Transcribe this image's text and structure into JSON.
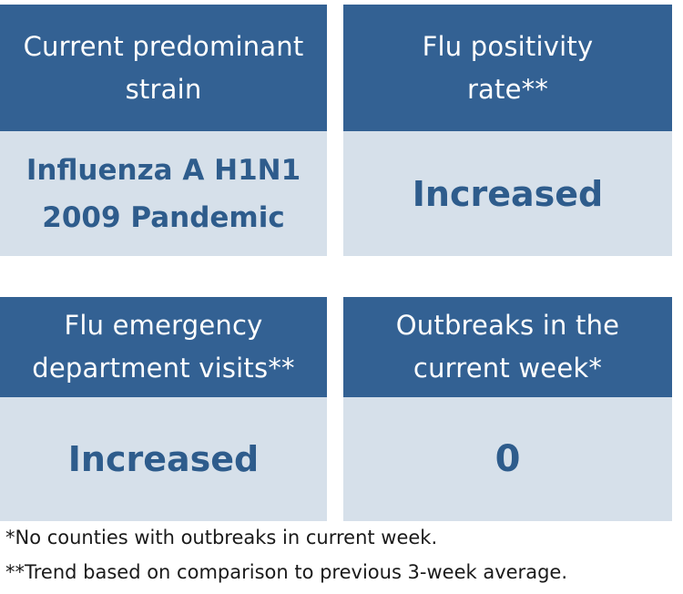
{
  "cards": [
    {
      "title": "Current predominant\nstrain",
      "value": "Influenza A H1N1\n2009 Pandemic"
    },
    {
      "title": "Flu positivity\nrate**",
      "value": "Increased"
    },
    {
      "title": "Flu emergency\ndepartment visits**",
      "value": "Increased"
    },
    {
      "title": "Outbreaks in the\ncurrent week*",
      "value": "0"
    }
  ],
  "footnotes": [
    "*No counties with outbreaks in current week.",
    "**Trend based on comparison to previous 3-week average."
  ],
  "colors": {
    "header_bg": "#336193",
    "header_text": "#ffffff",
    "body_bg": "#d6e0ea",
    "value_text": "#2e5c8c"
  }
}
